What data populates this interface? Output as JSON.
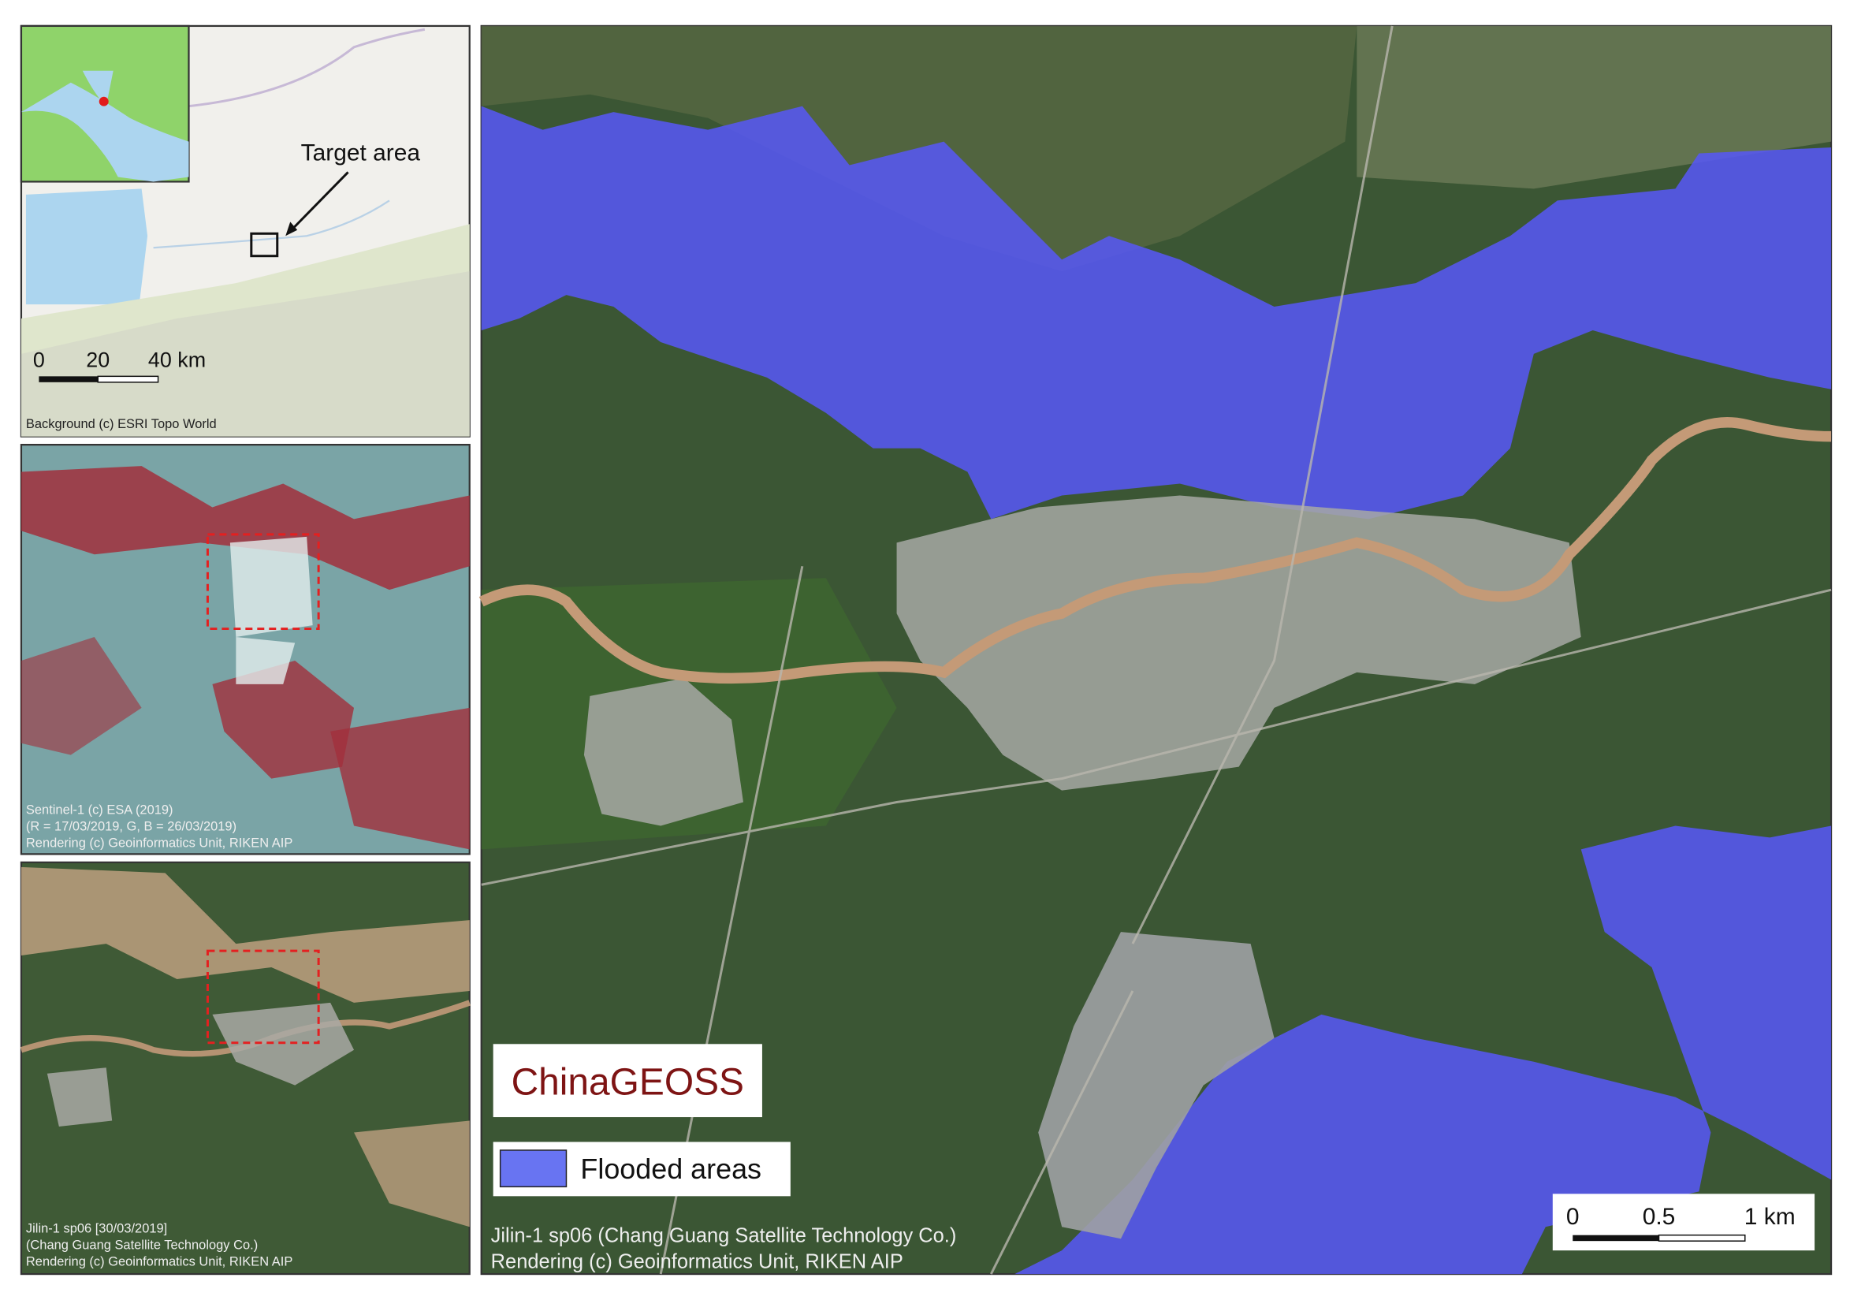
{
  "inset_map": {
    "target_label": "Target area",
    "scale_labels": [
      "0",
      "20",
      "40 km"
    ],
    "credit": "Background (c) ESRI Topo World"
  },
  "sentinel_panel": {
    "credits": [
      "Sentinel-1 (c) ESA (2019)",
      "(R = 17/03/2019, G, B = 26/03/2019)",
      "Rendering (c) Geoinformatics Unit, RIKEN AIP"
    ]
  },
  "jilin_panel": {
    "credits": [
      "Jilin-1 sp06 [30/03/2019]",
      "(Chang Guang Satellite Technology Co.)",
      "Rendering (c) Geoinformatics Unit, RIKEN AIP"
    ]
  },
  "main_map": {
    "logo": "ChinaGEOSS",
    "legend": "Flooded areas",
    "scale_labels": [
      "0",
      "0.5",
      "1 km"
    ],
    "credits": [
      "Jilin-1 sp06 (Chang Guang Satellite Technology Co.)",
      "Rendering (c) Geoinformatics Unit, RIKEN AIP"
    ]
  }
}
